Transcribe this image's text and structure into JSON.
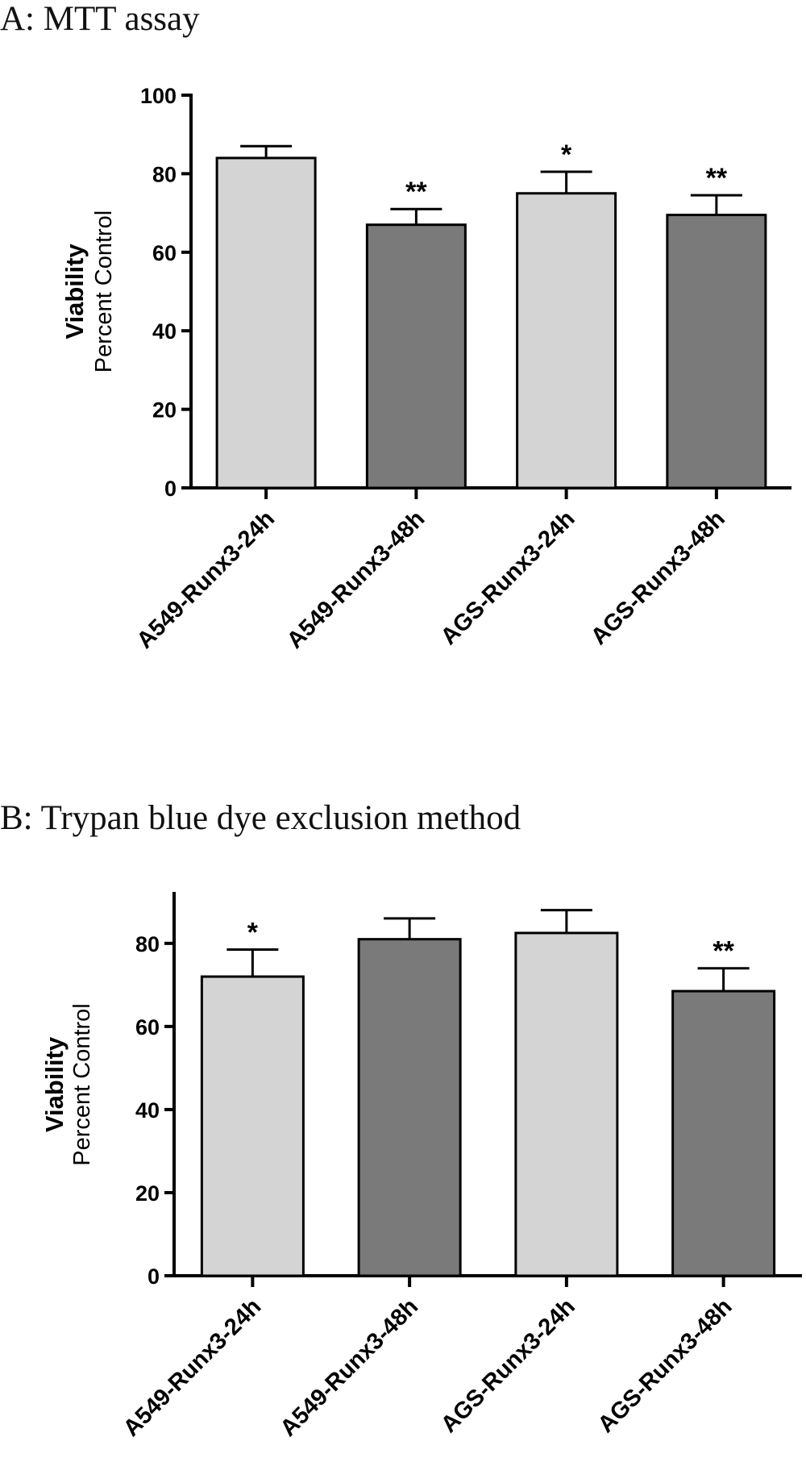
{
  "chart_data": [
    {
      "type": "bar",
      "title": "A: MTT assay",
      "ylabel": "Viability",
      "ylabel_sub": "Percent Control",
      "ylim": [
        0,
        100
      ],
      "yticks": [
        0,
        20,
        40,
        60,
        80,
        100
      ],
      "categories": [
        "A549-Runx3-24h",
        "A549-Runx3-48h",
        "AGS-Runx3-24h",
        "AGS-Runx3-48h"
      ],
      "values": [
        84,
        67,
        75,
        69.5
      ],
      "errors": [
        3,
        4,
        5.5,
        5
      ],
      "significance": [
        "",
        "**",
        "*",
        "**"
      ],
      "colors": [
        "#d4d4d4",
        "#7a7a7a",
        "#d4d4d4",
        "#7a7a7a"
      ],
      "grid": false
    },
    {
      "type": "bar",
      "title": "B: Trypan blue dye exclusion method",
      "ylabel": "Viability",
      "ylabel_sub": "Percent Control",
      "ylim": [
        0,
        92
      ],
      "yticks": [
        0,
        20,
        40,
        60,
        80
      ],
      "categories": [
        "A549-Runx3-24h",
        "A549-Runx3-48h",
        "AGS-Runx3-24h",
        "AGS-Runx3-48h"
      ],
      "values": [
        72,
        81,
        82.5,
        68.5
      ],
      "errors": [
        6.5,
        5,
        5.5,
        5.5
      ],
      "significance": [
        "*",
        "",
        "",
        "**"
      ],
      "colors": [
        "#d4d4d4",
        "#7a7a7a",
        "#d4d4d4",
        "#7a7a7a"
      ],
      "grid": false
    }
  ]
}
